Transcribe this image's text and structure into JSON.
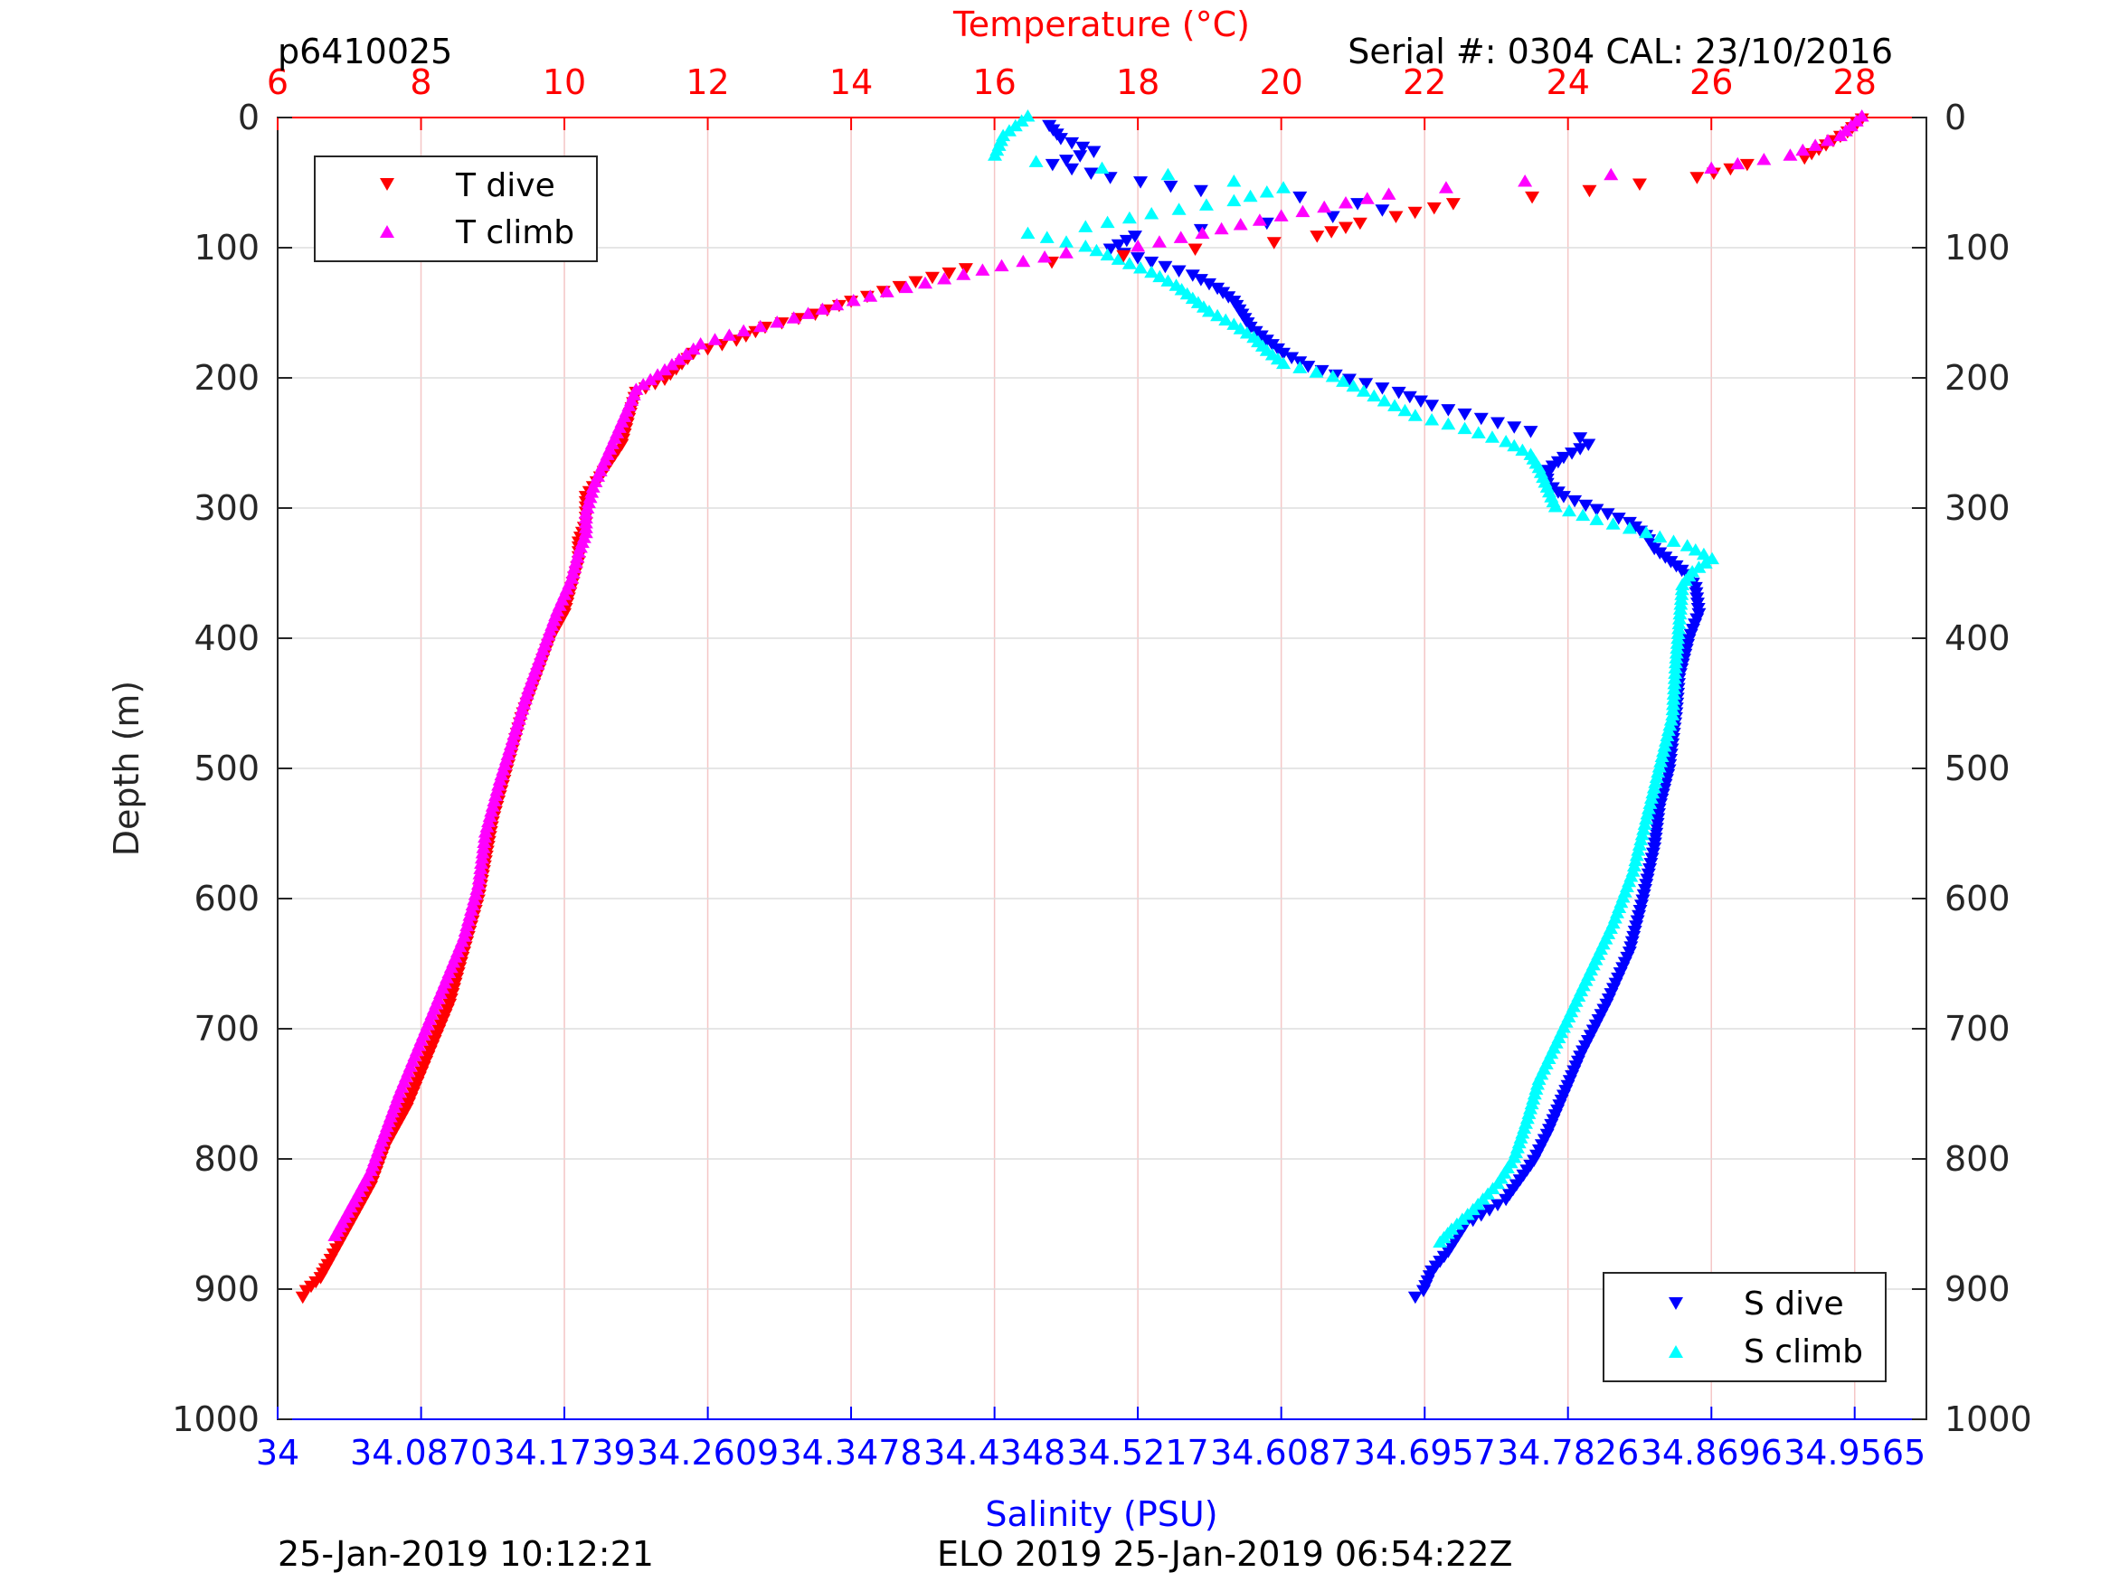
{
  "header": {
    "id_label": "p6410025",
    "serial_label": "Serial #: 0304  CAL: 23/10/2016"
  },
  "footer": {
    "left_timestamp": "25-Jan-2019 10:12:21",
    "right_mission": "ELO 2019 25-Jan-2019 06:54:22Z"
  },
  "colors": {
    "temperature_axis": "#ff0000",
    "salinity_axis": "#0000ff",
    "t_dive": "#ff0000",
    "t_climb": "#ff00ff",
    "s_dive": "#0000ff",
    "s_climb": "#00ffff"
  },
  "chart_data": {
    "type": "scatter",
    "title": "",
    "top_axis": {
      "label": "Temperature (°C)",
      "range": [
        6,
        29
      ],
      "ticks": [
        "6",
        "8",
        "10",
        "12",
        "14",
        "16",
        "18",
        "20",
        "22",
        "24",
        "26",
        "28"
      ],
      "tick_values": [
        6,
        8,
        10,
        12,
        14,
        16,
        18,
        20,
        22,
        24,
        26,
        28
      ]
    },
    "bottom_axis": {
      "label": "Salinity (PSU)",
      "range": [
        34,
        35
      ],
      "ticks": [
        "34",
        "34.0870",
        "34.1739",
        "34.2609",
        "34.3478",
        "34.4348",
        "34.5217",
        "34.6087",
        "34.6957",
        "34.7826",
        "34.8696",
        "34.9565"
      ],
      "tick_values": [
        34,
        34.087,
        34.1739,
        34.2609,
        34.3478,
        34.4348,
        34.5217,
        34.6087,
        34.6957,
        34.7826,
        34.8696,
        34.9565
      ]
    },
    "y_axis": {
      "label": "Depth (m)",
      "range": [
        0,
        1000
      ],
      "reversed": true,
      "ticks": [
        "0",
        "100",
        "200",
        "300",
        "400",
        "500",
        "600",
        "700",
        "800",
        "900",
        "1000"
      ],
      "tick_values": [
        0,
        100,
        200,
        300,
        400,
        500,
        600,
        700,
        800,
        900,
        1000
      ]
    },
    "grid": true,
    "legends": [
      {
        "placement": "top-left",
        "entries": [
          "T dive",
          "T climb"
        ]
      },
      {
        "placement": "bottom-right",
        "entries": [
          "S dive",
          "S climb"
        ]
      }
    ],
    "series": [
      {
        "name": "T dive",
        "axis": "temperature",
        "marker": "triangle-down",
        "points": [
          [
            28.1,
            0
          ],
          [
            27.9,
            10
          ],
          [
            27.6,
            20
          ],
          [
            27.3,
            30
          ],
          [
            26.5,
            35
          ],
          [
            25.8,
            45
          ],
          [
            25.0,
            50
          ],
          [
            24.3,
            55
          ],
          [
            23.5,
            60
          ],
          [
            22.4,
            65
          ],
          [
            21.6,
            75
          ],
          [
            21.1,
            80
          ],
          [
            20.5,
            90
          ],
          [
            19.9,
            95
          ],
          [
            18.8,
            100
          ],
          [
            17.8,
            105
          ],
          [
            16.8,
            110
          ],
          [
            15.6,
            115
          ],
          [
            14.9,
            125
          ],
          [
            14.0,
            140
          ],
          [
            13.5,
            150
          ],
          [
            12.8,
            160
          ],
          [
            12.4,
            170
          ],
          [
            11.8,
            180
          ],
          [
            11.4,
            200
          ],
          [
            11.0,
            210
          ],
          [
            10.9,
            230
          ],
          [
            10.8,
            250
          ],
          [
            10.5,
            275
          ],
          [
            10.3,
            290
          ],
          [
            10.3,
            310
          ],
          [
            10.2,
            325
          ],
          [
            10.2,
            340
          ],
          [
            10.1,
            360
          ],
          [
            10.0,
            380
          ],
          [
            9.8,
            400
          ],
          [
            9.6,
            430
          ],
          [
            9.4,
            460
          ],
          [
            9.2,
            500
          ],
          [
            9.0,
            540
          ],
          [
            8.9,
            570
          ],
          [
            8.8,
            600
          ],
          [
            8.6,
            640
          ],
          [
            8.4,
            680
          ],
          [
            8.1,
            720
          ],
          [
            7.8,
            760
          ],
          [
            7.5,
            790
          ],
          [
            7.3,
            820
          ],
          [
            7.1,
            840
          ],
          [
            6.9,
            860
          ],
          [
            6.7,
            880
          ],
          [
            6.6,
            890
          ],
          [
            6.4,
            900
          ],
          [
            6.35,
            905
          ]
        ]
      },
      {
        "name": "T climb",
        "axis": "temperature",
        "marker": "triangle-up",
        "points": [
          [
            28.1,
            0
          ],
          [
            27.8,
            15
          ],
          [
            27.1,
            30
          ],
          [
            26.0,
            40
          ],
          [
            24.6,
            45
          ],
          [
            23.4,
            50
          ],
          [
            22.3,
            55
          ],
          [
            21.5,
            60
          ],
          [
            20.6,
            70
          ],
          [
            19.7,
            80
          ],
          [
            18.9,
            90
          ],
          [
            18.0,
            100
          ],
          [
            17.0,
            105
          ],
          [
            16.1,
            115
          ],
          [
            15.3,
            125
          ],
          [
            14.5,
            135
          ],
          [
            13.8,
            145
          ],
          [
            13.2,
            155
          ],
          [
            12.5,
            165
          ],
          [
            11.9,
            175
          ],
          [
            11.4,
            195
          ],
          [
            11.0,
            210
          ],
          [
            10.8,
            235
          ],
          [
            10.6,
            260
          ],
          [
            10.4,
            285
          ],
          [
            10.3,
            305
          ],
          [
            10.3,
            320
          ],
          [
            10.2,
            335
          ],
          [
            10.1,
            355
          ],
          [
            9.9,
            380
          ],
          [
            9.7,
            410
          ],
          [
            9.5,
            440
          ],
          [
            9.3,
            475
          ],
          [
            9.1,
            510
          ],
          [
            8.9,
            550
          ],
          [
            8.8,
            590
          ],
          [
            8.6,
            630
          ],
          [
            8.3,
            670
          ],
          [
            8.0,
            710
          ],
          [
            7.7,
            750
          ],
          [
            7.5,
            780
          ],
          [
            7.3,
            810
          ],
          [
            7.1,
            830
          ],
          [
            6.9,
            850
          ],
          [
            6.8,
            860
          ]
        ]
      },
      {
        "name": "S dive",
        "axis": "salinity",
        "marker": "triangle-down",
        "points": [
          [
            34.468,
            5
          ],
          [
            34.475,
            15
          ],
          [
            34.495,
            25
          ],
          [
            34.47,
            35
          ],
          [
            34.505,
            45
          ],
          [
            34.56,
            55
          ],
          [
            34.62,
            60
          ],
          [
            34.655,
            65
          ],
          [
            34.67,
            70
          ],
          [
            34.64,
            75
          ],
          [
            34.6,
            80
          ],
          [
            34.56,
            85
          ],
          [
            34.52,
            90
          ],
          [
            34.505,
            100
          ],
          [
            34.53,
            110
          ],
          [
            34.555,
            120
          ],
          [
            34.57,
            130
          ],
          [
            34.58,
            140
          ],
          [
            34.585,
            150
          ],
          [
            34.59,
            160
          ],
          [
            34.6,
            170
          ],
          [
            34.61,
            180
          ],
          [
            34.625,
            190
          ],
          [
            34.65,
            200
          ],
          [
            34.68,
            210
          ],
          [
            34.7,
            220
          ],
          [
            34.73,
            230
          ],
          [
            34.76,
            240
          ],
          [
            34.79,
            245
          ],
          [
            34.795,
            250
          ],
          [
            34.78,
            260
          ],
          [
            34.77,
            270
          ],
          [
            34.77,
            280
          ],
          [
            34.78,
            290
          ],
          [
            34.8,
            300
          ],
          [
            34.82,
            310
          ],
          [
            34.83,
            320
          ],
          [
            34.835,
            330
          ],
          [
            34.845,
            340
          ],
          [
            34.855,
            350
          ],
          [
            34.86,
            360
          ],
          [
            34.862,
            380
          ],
          [
            34.856,
            400
          ],
          [
            34.85,
            430
          ],
          [
            34.848,
            460
          ],
          [
            34.844,
            500
          ],
          [
            34.838,
            530
          ],
          [
            34.835,
            560
          ],
          [
            34.828,
            600
          ],
          [
            34.82,
            640
          ],
          [
            34.806,
            680
          ],
          [
            34.79,
            720
          ],
          [
            34.78,
            750
          ],
          [
            34.77,
            780
          ],
          [
            34.762,
            800
          ],
          [
            34.745,
            830
          ],
          [
            34.72,
            850
          ],
          [
            34.71,
            870
          ],
          [
            34.7,
            885
          ],
          [
            34.695,
            900
          ],
          [
            34.69,
            905
          ]
        ]
      },
      {
        "name": "S climb",
        "axis": "salinity",
        "marker": "triangle-up",
        "points": [
          [
            34.455,
            0
          ],
          [
            34.44,
            15
          ],
          [
            34.435,
            30
          ],
          [
            34.46,
            35
          ],
          [
            34.5,
            40
          ],
          [
            34.54,
            45
          ],
          [
            34.58,
            50
          ],
          [
            34.61,
            55
          ],
          [
            34.58,
            65
          ],
          [
            34.53,
            75
          ],
          [
            34.49,
            85
          ],
          [
            34.455,
            90
          ],
          [
            34.49,
            100
          ],
          [
            34.51,
            110
          ],
          [
            34.53,
            120
          ],
          [
            34.545,
            130
          ],
          [
            34.555,
            140
          ],
          [
            34.565,
            150
          ],
          [
            34.58,
            160
          ],
          [
            34.592,
            170
          ],
          [
            34.6,
            180
          ],
          [
            34.61,
            190
          ],
          [
            34.64,
            200
          ],
          [
            34.665,
            215
          ],
          [
            34.69,
            230
          ],
          [
            34.72,
            240
          ],
          [
            34.745,
            250
          ],
          [
            34.76,
            260
          ],
          [
            34.765,
            270
          ],
          [
            34.77,
            285
          ],
          [
            34.775,
            300
          ],
          [
            34.8,
            310
          ],
          [
            34.83,
            320
          ],
          [
            34.855,
            330
          ],
          [
            34.87,
            340
          ],
          [
            34.858,
            350
          ],
          [
            34.852,
            360
          ],
          [
            34.85,
            390
          ],
          [
            34.848,
            420
          ],
          [
            34.846,
            460
          ],
          [
            34.838,
            500
          ],
          [
            34.83,
            540
          ],
          [
            34.822,
            580
          ],
          [
            34.81,
            620
          ],
          [
            34.795,
            660
          ],
          [
            34.78,
            700
          ],
          [
            34.765,
            740
          ],
          [
            34.758,
            770
          ],
          [
            34.75,
            800
          ],
          [
            34.74,
            820
          ],
          [
            34.725,
            840
          ],
          [
            34.712,
            855
          ],
          [
            34.705,
            865
          ]
        ]
      }
    ]
  }
}
